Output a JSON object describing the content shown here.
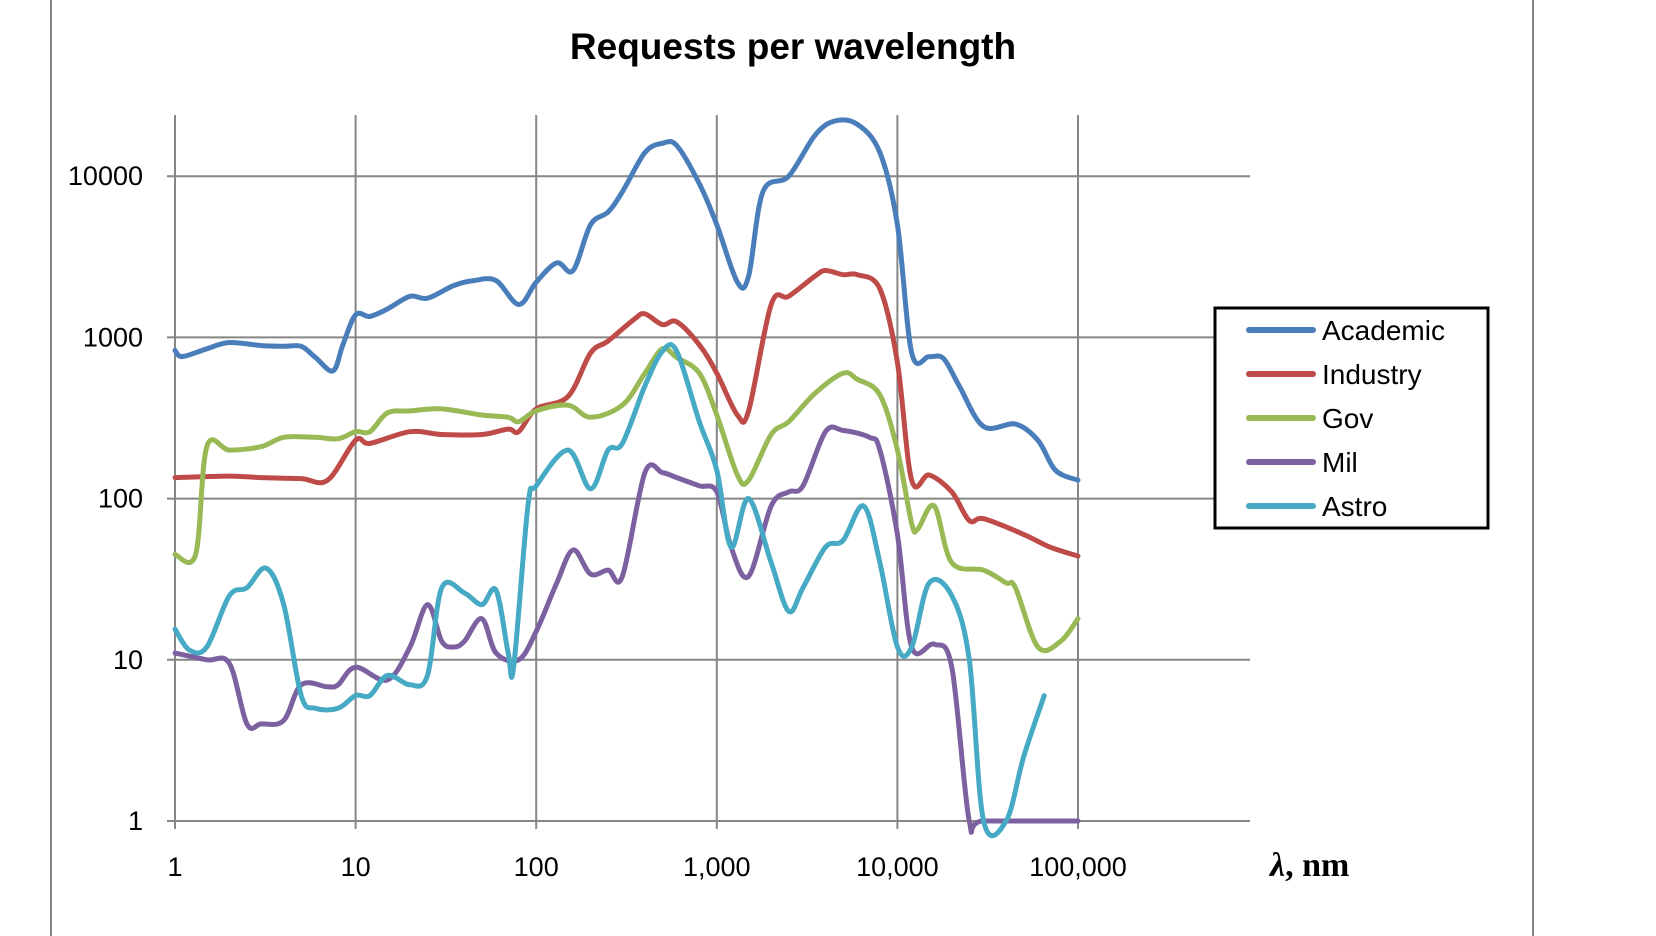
{
  "chart_data": {
    "type": "line",
    "title": "Requests per wavelength",
    "xlabel_symbol": "λ",
    "xlabel_unit": ", nm",
    "ylabel": "",
    "xscale": "log",
    "yscale": "log",
    "xlim": [
      1,
      1000000
    ],
    "ylim": [
      1,
      24000
    ],
    "grid": true,
    "legend_position": "right",
    "x_ticks": [
      {
        "v": 1,
        "label": "1"
      },
      {
        "v": 10,
        "label": "10"
      },
      {
        "v": 100,
        "label": "100"
      },
      {
        "v": 1000,
        "label": "1,000"
      },
      {
        "v": 10000,
        "label": "10,000"
      },
      {
        "v": 100000,
        "label": "100,000"
      }
    ],
    "y_ticks": [
      {
        "v": 1,
        "label": "1"
      },
      {
        "v": 10,
        "label": "10"
      },
      {
        "v": 100,
        "label": "100"
      },
      {
        "v": 1000,
        "label": "1000"
      },
      {
        "v": 10000,
        "label": "10000"
      }
    ],
    "series": [
      {
        "name": "Academic",
        "color": "#4a7ebb",
        "x": [
          1,
          1.1,
          1.5,
          2,
          3,
          4,
          5,
          6,
          7.5,
          8.5,
          10,
          12,
          15,
          20,
          25,
          35,
          45,
          60,
          80,
          100,
          130,
          160,
          200,
          250,
          300,
          400,
          500,
          600,
          800,
          1000,
          1300,
          1500,
          1800,
          2500,
          3500,
          4500,
          6000,
          8000,
          10000,
          12000,
          15000,
          18000,
          22000,
          30000,
          45000,
          60000,
          75000,
          100000
        ],
        "y": [
          830,
          760,
          850,
          930,
          890,
          880,
          880,
          750,
          620,
          900,
          1380,
          1350,
          1500,
          1800,
          1750,
          2100,
          2250,
          2250,
          1600,
          2200,
          2900,
          2600,
          5000,
          6000,
          8000,
          14000,
          16000,
          15500,
          9000,
          5000,
          2200,
          2400,
          8000,
          10000,
          18000,
          22000,
          21000,
          14000,
          5000,
          800,
          760,
          740,
          500,
          280,
          290,
          230,
          150,
          130
        ]
      },
      {
        "name": "Industry",
        "color": "#be4b48",
        "x": [
          1,
          2,
          3,
          5,
          7,
          10,
          12,
          20,
          30,
          50,
          70,
          80,
          100,
          150,
          200,
          250,
          350,
          400,
          500,
          600,
          800,
          1000,
          1300,
          1500,
          2000,
          2500,
          3500,
          4000,
          5000,
          6000,
          8000,
          10000,
          12000,
          15000,
          20000,
          25000,
          30000,
          50000,
          70000,
          100000
        ],
        "y": [
          135,
          138,
          135,
          133,
          130,
          230,
          220,
          260,
          250,
          250,
          270,
          260,
          360,
          430,
          800,
          950,
          1300,
          1400,
          1200,
          1250,
          900,
          600,
          330,
          350,
          1600,
          1800,
          2400,
          2600,
          2450,
          2450,
          2000,
          700,
          130,
          140,
          110,
          73,
          75,
          60,
          50,
          44
        ]
      },
      {
        "name": "Gov",
        "color": "#98b954",
        "x": [
          1,
          1.3,
          1.5,
          2,
          3,
          4,
          6,
          8,
          10,
          12,
          15,
          20,
          30,
          50,
          70,
          80,
          100,
          150,
          200,
          300,
          400,
          500,
          600,
          800,
          1000,
          1300,
          1500,
          2000,
          2500,
          3500,
          5000,
          6000,
          8000,
          10000,
          12000,
          13000,
          16000,
          20000,
          30000,
          40000,
          45000,
          60000,
          80000,
          100000
        ],
        "y": [
          45,
          45,
          210,
          200,
          210,
          240,
          240,
          235,
          260,
          260,
          340,
          350,
          360,
          330,
          320,
          300,
          350,
          380,
          320,
          380,
          600,
          850,
          750,
          600,
          330,
          140,
          130,
          250,
          300,
          450,
          600,
          550,
          440,
          200,
          70,
          65,
          90,
          40,
          36,
          30,
          28,
          12,
          13,
          18
        ]
      },
      {
        "name": "Mil",
        "color": "#7d60a0",
        "x": [
          1,
          1.5,
          2,
          2.5,
          3,
          4,
          5,
          7,
          8,
          10,
          15,
          20,
          25,
          30,
          35,
          40,
          50,
          60,
          80,
          100,
          130,
          160,
          200,
          250,
          300,
          400,
          500,
          600,
          800,
          1000,
          1200,
          1500,
          2000,
          2500,
          3000,
          4000,
          5000,
          7000,
          8000,
          10000,
          12000,
          16000,
          20000,
          25000,
          30000,
          100000
        ],
        "y": [
          11,
          10,
          9.5,
          4,
          4,
          4.2,
          7,
          6.8,
          7,
          9,
          7.5,
          12,
          22,
          13,
          12,
          13,
          18,
          11,
          10,
          15,
          30,
          48,
          34,
          36,
          33,
          145,
          145,
          135,
          120,
          110,
          50,
          33,
          90,
          110,
          120,
          260,
          265,
          240,
          200,
          60,
          12,
          12.5,
          9,
          1,
          1,
          1
        ]
      },
      {
        "name": "Astro",
        "color": "#46aac5",
        "x": [
          1,
          1.2,
          1.5,
          2,
          2.5,
          3.2,
          4,
          5,
          6,
          8,
          10,
          12,
          15,
          20,
          25,
          30,
          40,
          50,
          60,
          70,
          75,
          90,
          100,
          150,
          200,
          250,
          300,
          400,
          500,
          600,
          800,
          1000,
          1200,
          1500,
          2000,
          2500,
          3000,
          4000,
          5000,
          6500,
          8000,
          10000,
          12000,
          15000,
          20000,
          25000,
          30000,
          40000,
          50000,
          65000
        ],
        "y": [
          15.5,
          11.5,
          12,
          25,
          28,
          37,
          22,
          6,
          5,
          5,
          6,
          6,
          8,
          7,
          8,
          28,
          26,
          22,
          27,
          11,
          9,
          90,
          120,
          200,
          115,
          200,
          220,
          500,
          820,
          820,
          300,
          150,
          50,
          100,
          40,
          20,
          28,
          50,
          55,
          90,
          40,
          12,
          12,
          30,
          25,
          10,
          1,
          1,
          2.5,
          6
        ]
      }
    ]
  }
}
